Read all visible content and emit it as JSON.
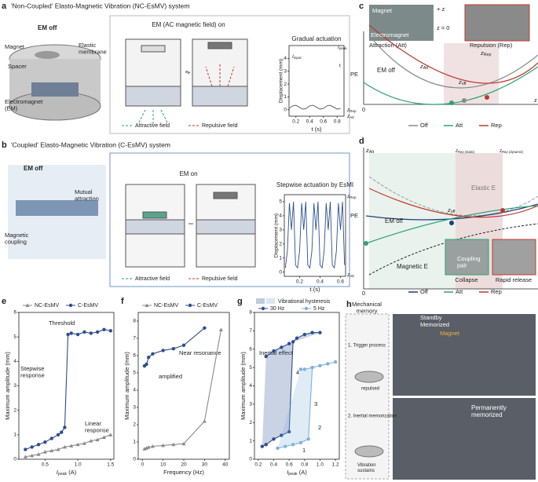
{
  "panel_a": {
    "letter": "a",
    "title": "'Non-Coupled' Elasto-Magnetic Vibration (NC-EsMV) system",
    "state_off": "EM off",
    "magnet": "Magnet",
    "membrane": [
      "Elastic",
      "membrane"
    ],
    "spacer": "Spacer",
    "em": [
      "Electromagnet",
      "(EM)"
    ],
    "state_on": "EM (AC magnetic field) on",
    "attractive": "Attractive field",
    "repulsive": "Repulsive field"
  },
  "panel_b": {
    "letter": "b",
    "title": "'Coupled' Elasto-Magnetic Vibration (C-EsMV) system",
    "state_off": "EM off",
    "mutual": [
      "Mutual",
      "attraction"
    ],
    "coupling": [
      "Magnetic",
      "coupling"
    ],
    "state_on": "EM on",
    "attractive": "Attractive field",
    "repulsive": "Repulsive field"
  },
  "panel_c": {
    "letter": "c",
    "magnet": "Magnet",
    "electromagnet": "Electromagnet",
    "plus_z": "+ z",
    "z0": "z = 0",
    "att_caption": "Attraction (Att)",
    "rep_caption": "Repulsion (Rep)",
    "pe": "PE",
    "em_off": "EM off",
    "z_att": {
      "main": "z",
      "sub": "Att"
    },
    "z_off": {
      "main": "z",
      "sub": "off"
    },
    "z_rep": {
      "main": "z",
      "sub": "Rep"
    },
    "origin": "0",
    "axis_z": "z",
    "legend": [
      "Off",
      "Att",
      "Rep"
    ],
    "colors": [
      "#8a8a8a",
      "#2aa37a",
      "#c0392b"
    ]
  },
  "panel_d": {
    "letter": "d",
    "z_att": {
      "main": "z",
      "sub": "Att"
    },
    "z_rep_static": {
      "main": "z",
      "sub": "Rep (static)"
    },
    "z_rep_dynamic": {
      "main": "z",
      "sub": "Rep (dynamic)"
    },
    "elastic": "Elastic E",
    "pe": "PE",
    "z_off": {
      "main": "z",
      "sub": "off"
    },
    "em_off": "EM off",
    "magnetic": "Magnetic E",
    "coupling": [
      "Coupling",
      "pair"
    ],
    "collapse": "Collapse",
    "release": "Rapid release",
    "origin": "0",
    "legend": [
      "Off",
      "Att",
      "Rep"
    ],
    "colors": [
      "#1f3f7a",
      "#2aa37a",
      "#c0392b"
    ]
  },
  "panel_h": {
    "letter": "h",
    "title": [
      "Mechanical",
      "memory"
    ],
    "step1": "1. Trigger process",
    "repulsed": "repulsed",
    "step2": "2. Inertial memorization",
    "sustains": [
      "Vibration",
      "sustains"
    ],
    "standby": "Standby",
    "memorized": "Memorized",
    "magnet": "Magnet",
    "permanent": [
      "Permanently",
      "memorized"
    ]
  },
  "chart_data": [
    {
      "type": "line",
      "title": "Gradual actuation",
      "ylabel": "Displacement (mm)",
      "xlabel": "t (s)",
      "xlim": [
        0.1,
        0.9
      ],
      "xticks": [
        0.2,
        0.4,
        0.6,
        0.8
      ],
      "ylim": [
        -0.5,
        5
      ],
      "yticks": [
        0,
        1,
        2,
        3,
        4
      ],
      "annotations": [
        {
          "main": "I",
          "sub": "input"
        },
        {
          "main": "I",
          "sub": "peak"
        },
        "t",
        {
          "main": "z",
          "sub": "Rep"
        },
        {
          "main": "z",
          "sub": "Att"
        }
      ],
      "series": [
        {
          "color": "#555555",
          "x": [
            0.1,
            0.15,
            0.2,
            0.25,
            0.3,
            0.35,
            0.4,
            0.45,
            0.5,
            0.55,
            0.6,
            0.65,
            0.7,
            0.75,
            0.8,
            0.85
          ],
          "values": [
            0.1,
            0.3,
            0.35,
            0.2,
            0.05,
            0.1,
            0.3,
            0.35,
            0.2,
            0.05,
            0.1,
            0.3,
            0.35,
            0.2,
            0.05,
            0.1
          ]
        }
      ]
    },
    {
      "type": "line",
      "title": "Stepwise actuation by EsMI",
      "ylabel": "Displacement (mm)",
      "xlabel": "t (s)",
      "xlim": [
        0.05,
        0.65
      ],
      "xticks": [
        0.2,
        0.4,
        0.6
      ],
      "ylim": [
        -0.3,
        5.5
      ],
      "yticks": [
        0,
        1,
        2,
        3,
        4,
        5
      ],
      "annotations": [
        {
          "main": "z",
          "sub": "Rep"
        },
        {
          "main": "z",
          "sub": "Att"
        }
      ],
      "series": [
        {
          "color": "#2d4e8f",
          "x": [
            0.06,
            0.08,
            0.1,
            0.12,
            0.14,
            0.16,
            0.18,
            0.2,
            0.22,
            0.24,
            0.26,
            0.28,
            0.3,
            0.32,
            0.34,
            0.36,
            0.38,
            0.4,
            0.42,
            0.44,
            0.46,
            0.48,
            0.5,
            0.52,
            0.54,
            0.56,
            0.58,
            0.6,
            0.62,
            0.64
          ],
          "values": [
            0.3,
            1.5,
            4.9,
            3.0,
            5.0,
            0.5,
            0.3,
            1.5,
            4.9,
            3.0,
            5.0,
            0.5,
            0.3,
            1.5,
            4.9,
            3.0,
            5.0,
            0.5,
            0.3,
            1.5,
            4.9,
            3.0,
            5.0,
            0.5,
            0.3,
            1.5,
            4.9,
            3.0,
            5.0,
            0.5
          ]
        }
      ]
    },
    {
      "type": "line",
      "letter": "e",
      "ylabel": "Maximum amplitude (mm)",
      "xlabel": {
        "main": "I",
        "sub": "peak",
        "unit": " (A)"
      },
      "xlim": [
        0.1,
        1.55
      ],
      "xticks": [
        0.5,
        {
          "value": 1,
          "label": "1.0"
        },
        1.5
      ],
      "ylim": [
        0,
        6
      ],
      "yticks": [
        0,
        1,
        2,
        3,
        4,
        5,
        6
      ],
      "annotations": [
        "Threshold",
        [
          "Stepwise",
          "response"
        ],
        [
          "Linear",
          "response"
        ]
      ],
      "series": [
        {
          "name": "NC-EsMV",
          "color": "#8a8a8a",
          "marker": "triangle",
          "x": [
            0.2,
            0.3,
            0.4,
            0.5,
            0.6,
            0.7,
            0.8,
            0.9,
            1.0,
            1.1,
            1.2,
            1.3,
            1.4,
            1.5
          ],
          "values": [
            0.1,
            0.15,
            0.2,
            0.3,
            0.35,
            0.4,
            0.5,
            0.55,
            0.6,
            0.65,
            0.75,
            0.8,
            0.9,
            1.0
          ]
        },
        {
          "name": "C-EsMV",
          "color": "#2d4e8f",
          "marker": "circle",
          "x": [
            0.2,
            0.3,
            0.4,
            0.5,
            0.6,
            0.7,
            0.75,
            0.8,
            0.85,
            0.9,
            1.0,
            1.1,
            1.2,
            1.3,
            1.4,
            1.5
          ],
          "values": [
            0.4,
            0.5,
            0.6,
            0.7,
            0.85,
            1.0,
            1.1,
            1.3,
            5.1,
            5.15,
            5.1,
            5.2,
            5.15,
            5.2,
            5.3,
            5.25
          ]
        }
      ]
    },
    {
      "type": "line",
      "letter": "f",
      "ylabel": "Maximum amplitude (mm)",
      "xlabel": "Frequency (Hz)",
      "xlim": [
        -2,
        42
      ],
      "xticks": [
        0,
        10,
        20,
        30,
        40
      ],
      "ylim": [
        0,
        8.5
      ],
      "yticks": [
        0,
        1,
        2,
        3,
        4,
        5,
        6,
        7,
        8
      ],
      "annotations": [
        "amplified",
        "Near resonance"
      ],
      "series": [
        {
          "name": "NC-EsMV",
          "color": "#8a8a8a",
          "marker": "triangle",
          "x": [
            1,
            2,
            3,
            5,
            10,
            15,
            20,
            30,
            38
          ],
          "values": [
            0.6,
            0.65,
            0.7,
            0.75,
            0.8,
            0.85,
            0.9,
            2.2,
            7.5
          ]
        },
        {
          "name": "C-EsMV",
          "color": "#2d4e8f",
          "marker": "circle",
          "x": [
            1,
            2,
            3,
            5,
            10,
            15,
            20,
            30
          ],
          "values": [
            5.4,
            5.5,
            5.9,
            6.1,
            6.3,
            6.4,
            6.6,
            7.6
          ]
        }
      ]
    },
    {
      "type": "line",
      "letter": "g",
      "legend_title": "Vibrational hysteresis",
      "ylabel": "Maximum amplitude (mm)",
      "xlabel": {
        "main": "I",
        "sub": "peak",
        "unit": " (A)"
      },
      "xlim": [
        0.15,
        1.25
      ],
      "xticks": [
        0.2,
        0.4,
        0.6,
        0.8,
        {
          "value": 1,
          "label": "1.0"
        },
        1.2
      ],
      "ylim": [
        0,
        8
      ],
      "yticks": [
        0,
        1,
        2,
        3,
        4,
        5,
        6,
        7,
        8
      ],
      "fill_loops": true,
      "annotations": [
        "Inertial effect",
        "1",
        "2",
        "3",
        "4"
      ],
      "series": [
        {
          "name": "30 Hz",
          "color": "#2d4e8f",
          "marker": "circle",
          "x": [
            0.25,
            0.3,
            0.4,
            0.5,
            0.6,
            0.65,
            0.7,
            0.8,
            0.9,
            1.0,
            1.0,
            0.6,
            0.5,
            0.4,
            0.3
          ],
          "values": [
            0.7,
            0.8,
            1.1,
            1.3,
            1.5,
            6.4,
            6.6,
            6.8,
            6.9,
            6.9,
            null,
            6.3,
            6.1,
            5.9,
            5.6
          ]
        },
        {
          "name": "5 Hz",
          "color": "#7fb2d9",
          "marker": "circle",
          "x": [
            0.45,
            0.55,
            0.65,
            0.75,
            0.85,
            0.9,
            1.0,
            1.1,
            1.2,
            1.2,
            0.9,
            0.8,
            0.75
          ],
          "values": [
            0.6,
            0.7,
            0.8,
            0.9,
            1.1,
            5.0,
            5.1,
            5.2,
            5.3,
            null,
            5.0,
            4.9,
            4.9
          ]
        }
      ]
    }
  ]
}
